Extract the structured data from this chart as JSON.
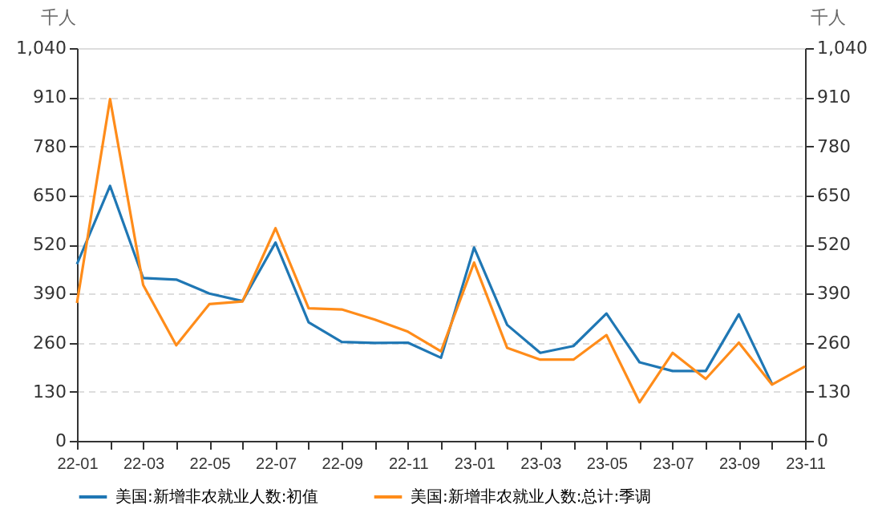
{
  "chart_data": {
    "type": "line",
    "ylabel": "千人",
    "y2label": "千人",
    "categories": [
      "22-01",
      null,
      "22-03",
      null,
      "22-05",
      null,
      "22-07",
      null,
      "22-09",
      null,
      "22-11",
      null,
      "23-01",
      null,
      "23-03",
      null,
      "23-05",
      null,
      "23-07",
      null,
      "23-09",
      null,
      "23-11"
    ],
    "series": [
      {
        "name": "美国:新增非农就业人数:初值",
        "color": "#1f77b4",
        "values": [
          468,
          675,
          431,
          427,
          390,
          370,
          525,
          314,
          262,
          259,
          260,
          220,
          512,
          307,
          233,
          251,
          337,
          208,
          185,
          185,
          335,
          151,
          null
        ]
      },
      {
        "name": "美国:新增非农就业人数:总计:季调",
        "color": "#ff8c1a",
        "values": [
          365,
          905,
          413,
          253,
          362,
          369,
          563,
          351,
          348,
          321,
          289,
          237,
          472,
          246,
          215,
          215,
          280,
          102,
          233,
          164,
          260,
          149,
          197
        ]
      }
    ],
    "ylim": [
      0,
      1040
    ],
    "yticks": [
      0,
      130,
      260,
      390,
      520,
      650,
      780,
      910,
      {
        "value": 1040,
        "label": "1,040"
      }
    ],
    "y2lim": [
      0,
      1040
    ],
    "y2ticks": [
      0,
      130,
      260,
      390,
      520,
      650,
      780,
      910,
      {
        "value": 1040,
        "label": "1,040"
      }
    ],
    "grid": "y",
    "legend": "bottom",
    "marker": "none",
    "line_style": "solid"
  }
}
